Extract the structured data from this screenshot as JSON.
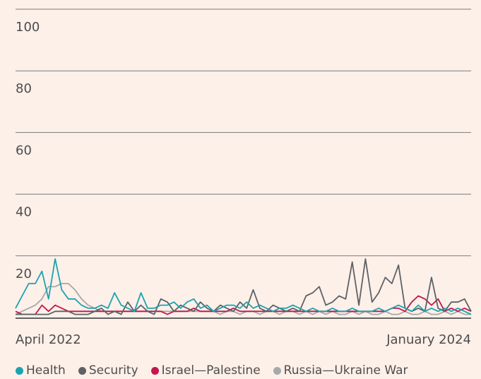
{
  "chart_data": {
    "type": "line",
    "x_labels": [
      "April 2022",
      "January 2024"
    ],
    "ylim": [
      0,
      100
    ],
    "yticks": [
      20,
      40,
      60,
      80,
      100
    ],
    "grid": true,
    "series": [
      {
        "name": "Health",
        "color": "#1aa3b0",
        "values": [
          3,
          7,
          11,
          11,
          15,
          6,
          19,
          9,
          6,
          6,
          4,
          3,
          3,
          4,
          3,
          8,
          4,
          3,
          2,
          8,
          3,
          3,
          4,
          4,
          5,
          3,
          5,
          6,
          3,
          4,
          2,
          3,
          4,
          4,
          3,
          5,
          3,
          4,
          3,
          2,
          3,
          3,
          4,
          3,
          2,
          3,
          2,
          2,
          3,
          2,
          2,
          3,
          2,
          2,
          2,
          3,
          2,
          3,
          4,
          3,
          2,
          4,
          2,
          3,
          2,
          3,
          2,
          3,
          2,
          1
        ]
      },
      {
        "name": "Security",
        "color": "#5d6166",
        "values": [
          1,
          1,
          1,
          1,
          1,
          1,
          2,
          2,
          2,
          1,
          1,
          1,
          2,
          3,
          1,
          2,
          1,
          5,
          2,
          4,
          2,
          1,
          6,
          5,
          2,
          4,
          3,
          2,
          5,
          3,
          2,
          4,
          3,
          2,
          5,
          3,
          9,
          3,
          2,
          4,
          3,
          2,
          3,
          2,
          7,
          8,
          10,
          4,
          5,
          7,
          6,
          18,
          4,
          19,
          5,
          8,
          13,
          11,
          17,
          3,
          2,
          3,
          2,
          13,
          3,
          2,
          5,
          5,
          6,
          2
        ]
      },
      {
        "name": "Israel—Palestine",
        "color": "#c4154f",
        "values": [
          2,
          1,
          1,
          1,
          4,
          2,
          4,
          3,
          2,
          2,
          2,
          2,
          2,
          2,
          2,
          2,
          2,
          2,
          2,
          2,
          2,
          2,
          2,
          1,
          2,
          2,
          2,
          3,
          2,
          2,
          2,
          2,
          2,
          3,
          2,
          2,
          2,
          2,
          2,
          2,
          2,
          2,
          2,
          2,
          2,
          2,
          2,
          2,
          2,
          2,
          2,
          2,
          2,
          2,
          2,
          2,
          2,
          3,
          3,
          2,
          5,
          7,
          6,
          4,
          6,
          2,
          3,
          2,
          3,
          2
        ]
      },
      {
        "name": "Russia—Ukraine War",
        "color": "#a8a8a8",
        "values": [
          1,
          2,
          3,
          4,
          6,
          10,
          10,
          11,
          11,
          9,
          6,
          4,
          3,
          2,
          2,
          2,
          2,
          2,
          2,
          2,
          2,
          2,
          2,
          2,
          2,
          2,
          2,
          2,
          2,
          2,
          2,
          1,
          2,
          2,
          1,
          2,
          2,
          1,
          2,
          2,
          1,
          2,
          2,
          1,
          2,
          1,
          2,
          1,
          2,
          1,
          1,
          2,
          1,
          2,
          1,
          1,
          2,
          1,
          1,
          2,
          1,
          1,
          2,
          1,
          1,
          2,
          1,
          2,
          1,
          1
        ]
      }
    ]
  }
}
